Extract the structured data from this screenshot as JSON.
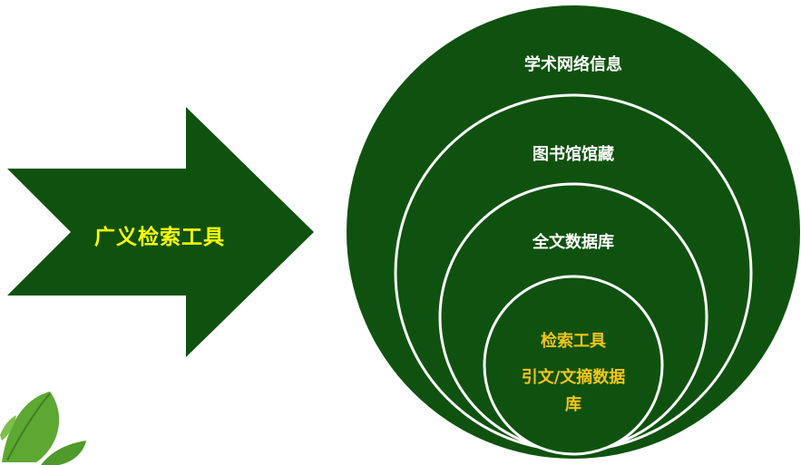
{
  "arrow": {
    "label": "广义检索工具"
  },
  "circles": {
    "outer": "学术网络信息",
    "second": "图书馆馆藏",
    "third": "全文数据库",
    "core": {
      "line1": "检索工具",
      "line2": "引文/文摘数据",
      "line3": "库"
    }
  },
  "colors": {
    "fill": "#0f520f",
    "ring_stroke": "#ffffff",
    "arrow_text": "#ffff00",
    "ring_text": "#ffffff",
    "core_text": "#f5c518",
    "leaf": "#5da832"
  }
}
